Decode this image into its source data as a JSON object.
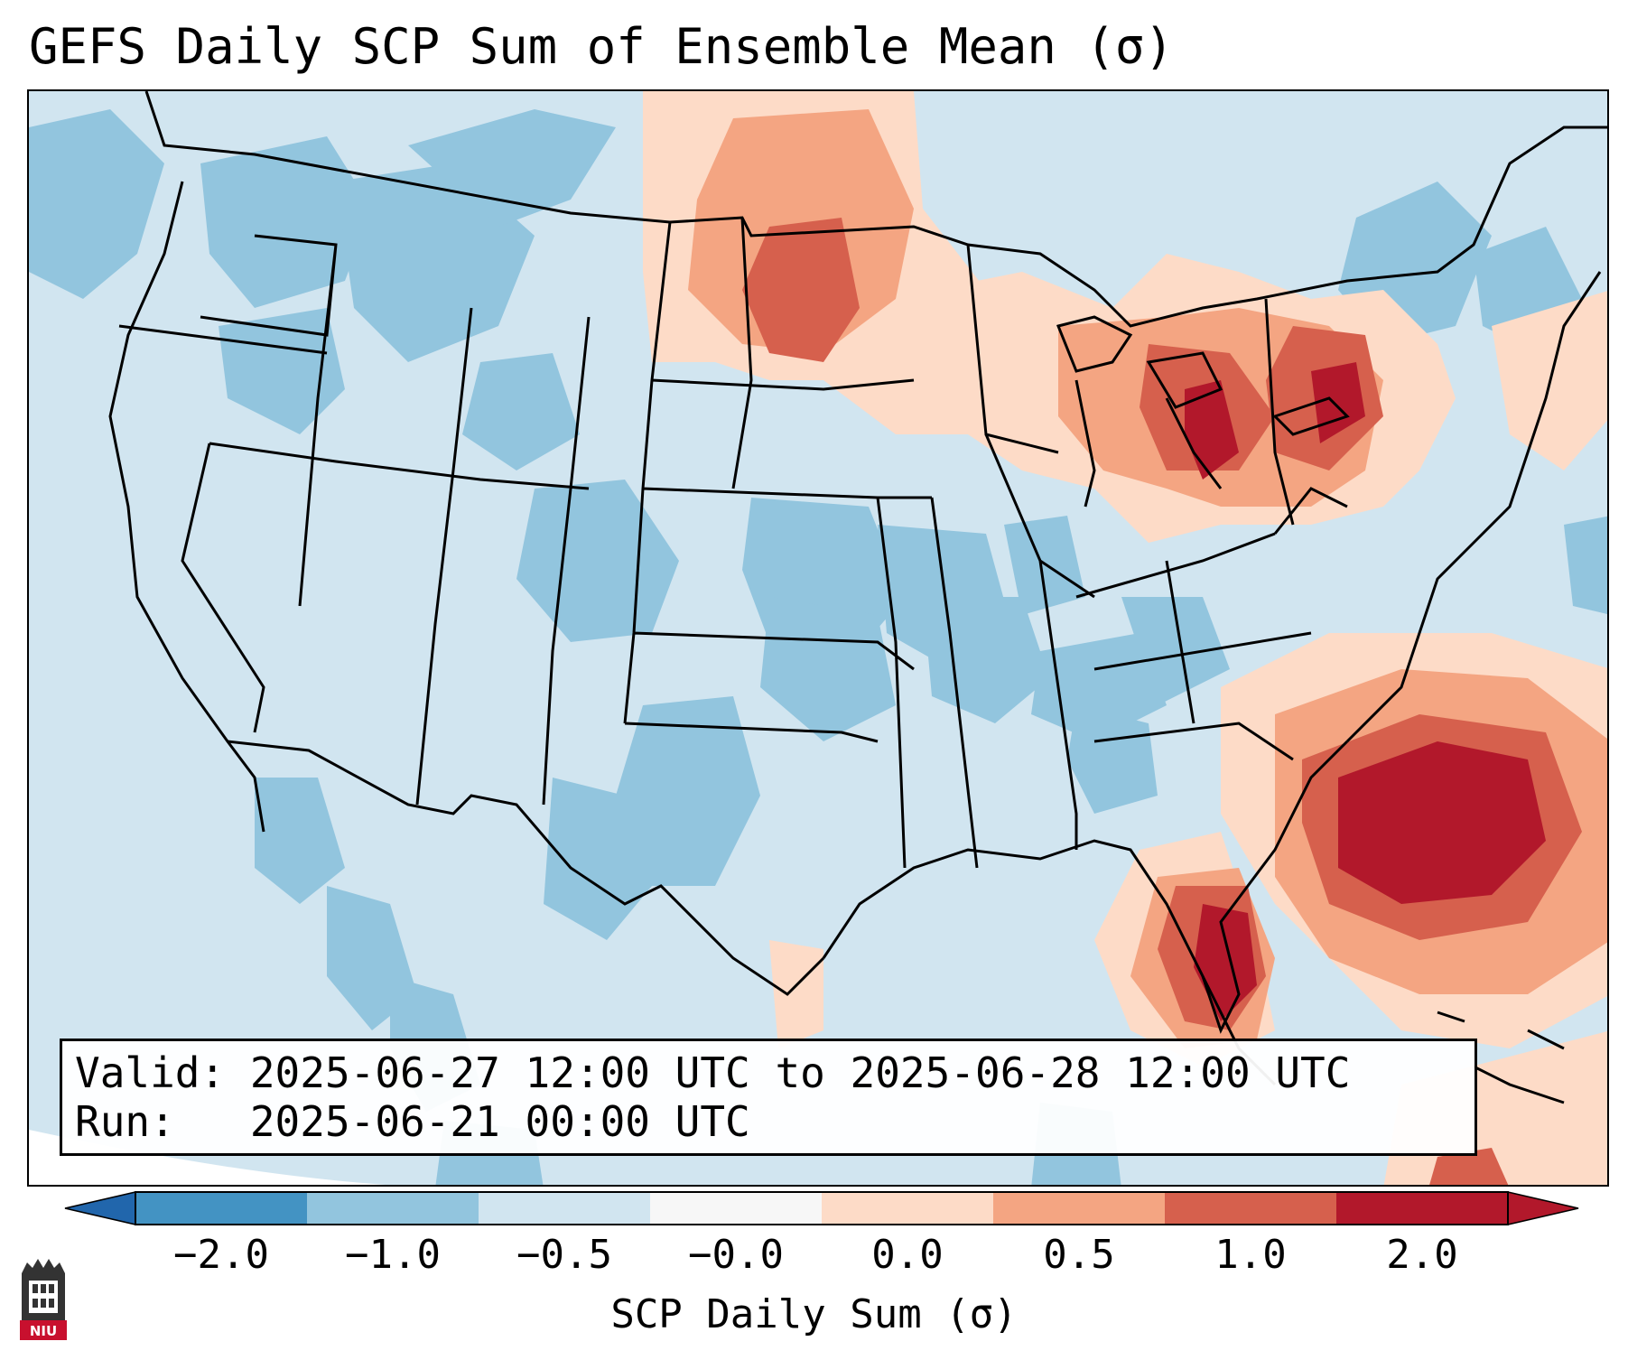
{
  "title": "GEFS Daily SCP Sum of Ensemble Mean (σ)",
  "valid_box": {
    "valid_line": "Valid: 2025-06-27 12:00 UTC to 2025-06-28 12:00 UTC",
    "run_line": "Run:   2025-06-21 00:00 UTC"
  },
  "colorbar": {
    "label": "SCP Daily Sum (σ)",
    "ticks": [
      "−2.0",
      "−1.0",
      "−0.5",
      "−0.0",
      "0.0",
      "0.5",
      "1.0",
      "2.0"
    ],
    "colors": [
      "#4393c3",
      "#92c5de",
      "#d1e5f0",
      "#f7f7f7",
      "#fddbc7",
      "#f4a582",
      "#d6604d",
      "#b2182b"
    ],
    "extend_low_color": "#2166ac",
    "extend_high_color": "#b2182b"
  },
  "map_colors": {
    "background": "#d1e5f0",
    "negative_1": "#92c5de",
    "positive_1": "#fddbc7",
    "positive_2": "#f4a582",
    "positive_3": "#d6604d",
    "positive_4": "#b2182b",
    "borders": "#000000"
  },
  "logo": {
    "text": "NIU",
    "icon": "niu-logo-icon"
  }
}
